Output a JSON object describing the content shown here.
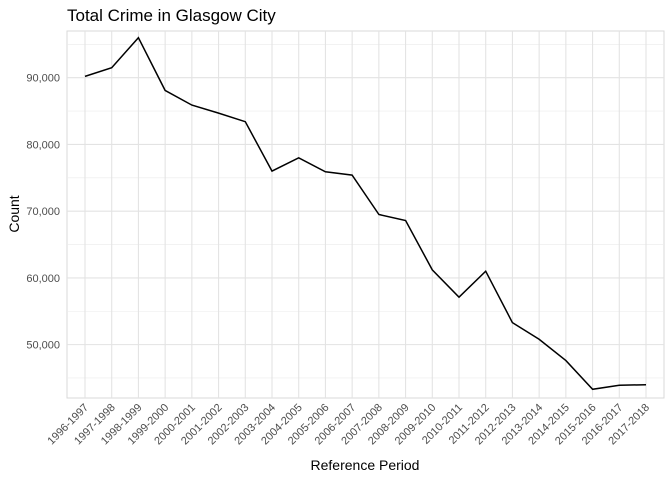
{
  "chart_data": {
    "type": "line",
    "title": "Total Crime in Glasgow City",
    "xlabel": "Reference Period",
    "ylabel": "Count",
    "categories": [
      "1996-1997",
      "1997-1998",
      "1998-1999",
      "1999-2000",
      "2000-2001",
      "2001-2002",
      "2002-2003",
      "2003-2004",
      "2004-2005",
      "2005-2006",
      "2006-2007",
      "2007-2008",
      "2008-2009",
      "2009-2010",
      "2010-2011",
      "2011-2012",
      "2012-2013",
      "2013-2014",
      "2014-2015",
      "2015-2016",
      "2016-2017",
      "2017-2018"
    ],
    "values": [
      90200,
      91500,
      96000,
      88100,
      85900,
      84700,
      83400,
      76000,
      78000,
      75900,
      75400,
      69500,
      68600,
      61200,
      57100,
      61000,
      53300,
      50800,
      47600,
      43300,
      43900,
      44000
    ],
    "ylim": [
      42000,
      97000
    ],
    "y_ticks": [
      50000,
      60000,
      70000,
      80000,
      90000
    ],
    "y_tick_labels": [
      "50,000",
      "60,000",
      "70,000",
      "80,000",
      "90,000"
    ],
    "grid": true,
    "line_color": "#000000",
    "grid_color": "#ebebeb"
  }
}
